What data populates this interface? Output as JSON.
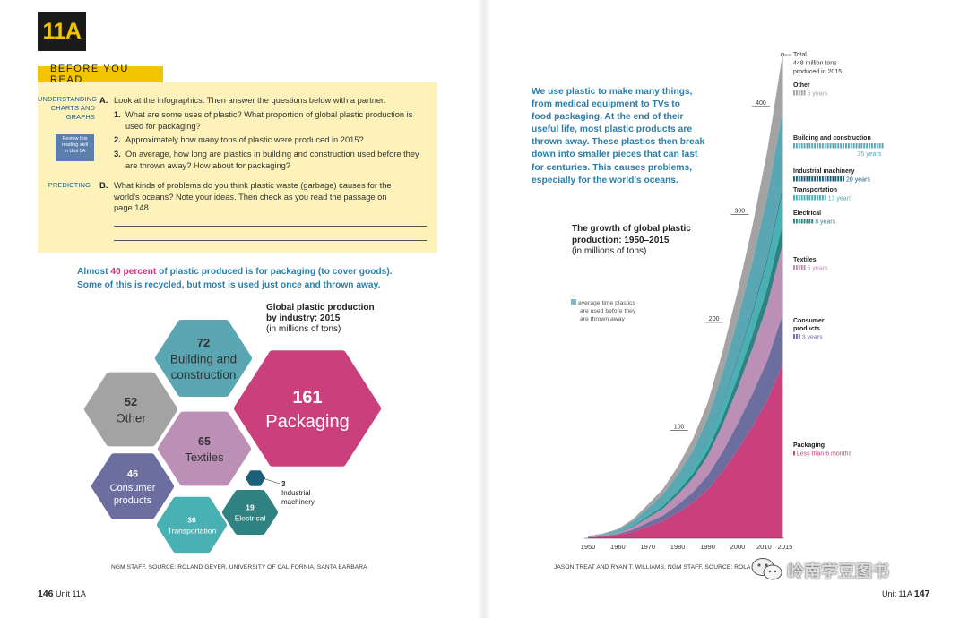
{
  "unit_badge": "11A",
  "before_you_read": "BEFORE YOU READ",
  "understanding_label": [
    "UNDERSTANDING",
    "CHARTS AND",
    "GRAPHS"
  ],
  "review_box": [
    "Review this",
    "reading skill",
    "in Unit 5A"
  ],
  "predicting_label": "PREDICTING",
  "section_a": {
    "letter": "A.",
    "text": "Look at the infographics. Then answer the questions below with a partner.",
    "q1_num": "1.",
    "q1_lines": [
      "What are some uses of plastic? What proportion of global plastic production is",
      "used for packaging?"
    ],
    "q2_num": "2.",
    "q2": "Approximately how many tons of plastic were produced in 2015?",
    "q3_num": "3.",
    "q3_lines": [
      "On average, how long are plastics in building and construction used before they",
      "are thrown away? How about for packaging?"
    ]
  },
  "section_b": {
    "letter": "B.",
    "lines": [
      "What kinds of problems do you think plastic waste (garbage) causes for the",
      "world's oceans? Note your ideas. Then check as you read the passage on",
      "page 148."
    ]
  },
  "intro": {
    "p1a": "Almost ",
    "p1_highlight": "40 percent",
    "p1b": " of plastic produced is for packaging (to cover goods).",
    "p2": "Some of this is recycled, but most is used just once and thrown away."
  },
  "hex_title": {
    "bold1": "Global plastic production",
    "bold2": "by industry: 2015",
    "sub": "(in millions of tons)"
  },
  "hex_chart": {
    "items": [
      {
        "value": "72",
        "label1": "Building and",
        "label2": "construction",
        "color": "#5aa6b3"
      },
      {
        "value": "161",
        "label1": "Packaging",
        "label2": "",
        "color": "#c9407d"
      },
      {
        "value": "52",
        "label1": "Other",
        "label2": "",
        "color": "#a3a3a3"
      },
      {
        "value": "65",
        "label1": "Textiles",
        "label2": "",
        "color": "#bc8fb6"
      },
      {
        "value": "46",
        "label1": "Consumer",
        "label2": "products",
        "color": "#6b6e9e"
      },
      {
        "value": "30",
        "label1": "Transportation",
        "label2": "",
        "color": "#49b1b3"
      },
      {
        "value": "19",
        "label1": "Electrical",
        "label2": "",
        "color": "#2e8281"
      },
      {
        "value": "3",
        "label1": "Industrial",
        "label2": "machinery",
        "color": "#1d5e79"
      }
    ]
  },
  "left_credit": "NGM STAFF. SOURCE: ROLAND GEYER, UNIVERSITY OF CALIFORNIA, SANTA BARBARA",
  "left_folio": {
    "num": "146",
    "unit": "Unit 11A"
  },
  "right_folio": {
    "unit": "Unit 11A",
    "num": "147"
  },
  "blue_paragraph": [
    "We use plastic to make many things,",
    "from medical equipment to TVs to",
    "food packaging. At the end of their",
    "useful life, most plastic products are",
    "thrown away. These plastics then break",
    "down into smaller pieces that can last",
    "for centuries. This causes problems,",
    "especially for the world's oceans."
  ],
  "chart_title": {
    "line1": "The growth of global plastic",
    "line2": "production: 1950–2015",
    "sub": "(in millions of tons)"
  },
  "legend_note": [
    "average time plastics",
    "are used before they",
    "are thrown away"
  ],
  "right_credit": "JASON TREAT AND RYAN T. WILLIAMS, NGM STAFF. SOURCE: ROLA",
  "wechat_watermark": "岭南学豆图书",
  "chart_data": {
    "type": "area",
    "title": "The growth of global plastic production: 1950–2015",
    "ylabel": "(in millions of tons)",
    "x": [
      1950,
      1955,
      1960,
      1965,
      1970,
      1975,
      1980,
      1985,
      1990,
      1995,
      2000,
      2005,
      2010,
      2015
    ],
    "x_ticks": [
      "1950",
      "1960",
      "1970",
      "1980",
      "1990",
      "2000",
      "2010",
      "2015"
    ],
    "y_ticks": [
      100,
      200,
      300,
      400
    ],
    "ylim": [
      0,
      450
    ],
    "total_label": [
      "Total",
      "448 million tons",
      "produced in 2015"
    ],
    "series": [
      {
        "name": "Packaging",
        "life": "Less than 6 months",
        "bars": 1,
        "color": "#c9407d",
        "values": [
          0.8,
          1.5,
          3,
          6,
          11,
          16,
          24,
          33,
          45,
          62,
          82,
          104,
          128,
          161
        ]
      },
      {
        "name": "Consumer products",
        "life": "3 years",
        "bars": 3,
        "color": "#6b6e9e",
        "values": [
          0.3,
          0.5,
          1,
          2,
          3.5,
          5,
          7,
          9.5,
          13,
          18,
          24,
          30,
          37,
          46
        ]
      },
      {
        "name": "Textiles",
        "life": "5 years",
        "bars": 5,
        "color": "#bc8fb6",
        "values": [
          0.3,
          0.6,
          1.2,
          2.5,
          4.5,
          6.5,
          9.5,
          13,
          18,
          25,
          33,
          42,
          52,
          65
        ]
      },
      {
        "name": "Electrical",
        "life": "8 years",
        "bars": 8,
        "color": "#2e8281",
        "values": [
          0.1,
          0.2,
          0.4,
          0.8,
          1.4,
          2,
          3,
          4,
          5.5,
          7.5,
          10,
          12.5,
          15.5,
          19
        ]
      },
      {
        "name": "Transportation",
        "life": "13 years",
        "bars": 13,
        "color": "#49b1b3",
        "values": [
          0.1,
          0.3,
          0.6,
          1.2,
          2.2,
          3.2,
          4.5,
          6.5,
          8.5,
          12,
          16,
          20,
          25,
          30
        ]
      },
      {
        "name": "Industrial machinery",
        "life": "20 years",
        "bars": 20,
        "color": "#1d5e79",
        "values": [
          0.02,
          0.03,
          0.06,
          0.1,
          0.2,
          0.3,
          0.4,
          0.6,
          0.8,
          1.1,
          1.5,
          2,
          2.5,
          3
        ]
      },
      {
        "name": "Building and construction",
        "life": "35 years",
        "bars": 35,
        "color": "#5aa6b3",
        "values": [
          0.3,
          0.7,
          1.4,
          3,
          5,
          7.5,
          10.5,
          14.5,
          20,
          27.5,
          36,
          46,
          58,
          72
        ]
      },
      {
        "name": "Other",
        "life": "5 years",
        "bars": 5,
        "color": "#a3a3a3",
        "values": [
          0.2,
          0.5,
          1,
          2,
          3.5,
          5,
          7.5,
          10.5,
          14.5,
          20,
          26,
          33,
          42,
          52
        ]
      }
    ]
  }
}
